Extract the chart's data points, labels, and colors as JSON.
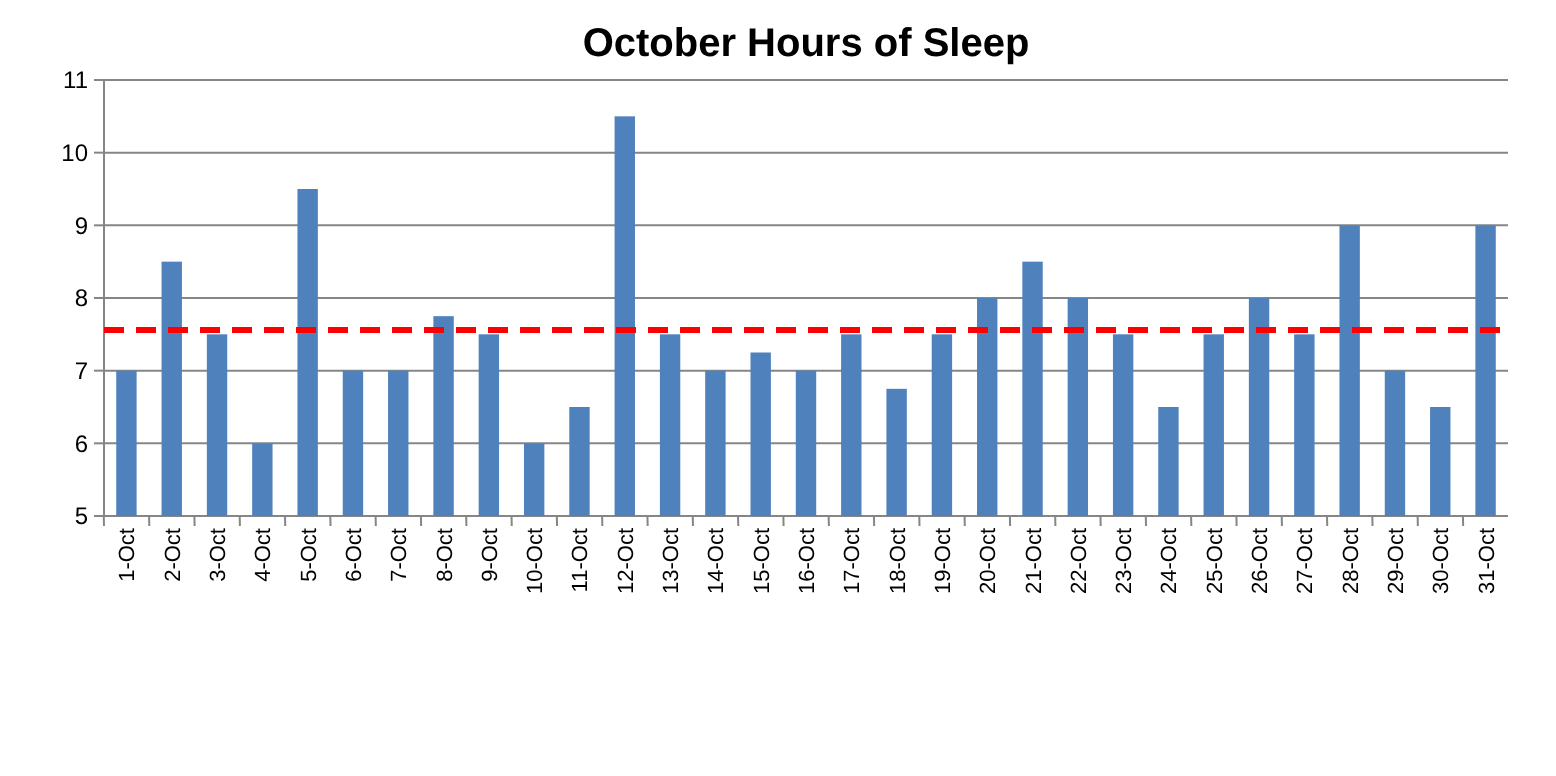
{
  "chart_data": {
    "type": "bar",
    "title": "October Hours of Sleep",
    "categories": [
      "1-Oct",
      "2-Oct",
      "3-Oct",
      "4-Oct",
      "5-Oct",
      "6-Oct",
      "7-Oct",
      "8-Oct",
      "9-Oct",
      "10-Oct",
      "11-Oct",
      "12-Oct",
      "13-Oct",
      "14-Oct",
      "15-Oct",
      "16-Oct",
      "17-Oct",
      "18-Oct",
      "19-Oct",
      "20-Oct",
      "21-Oct",
      "22-Oct",
      "23-Oct",
      "24-Oct",
      "25-Oct",
      "26-Oct",
      "27-Oct",
      "28-Oct",
      "29-Oct",
      "30-Oct",
      "31-Oct"
    ],
    "values": [
      7,
      8.5,
      7.5,
      6,
      9.5,
      7,
      7,
      7.75,
      7.5,
      6,
      6.5,
      10.5,
      7.5,
      7,
      7.25,
      7,
      7.5,
      6.75,
      7.5,
      8,
      8.5,
      8,
      7.5,
      6.5,
      7.5,
      8,
      7.5,
      9,
      7,
      6.5,
      9
    ],
    "color": "#4f81bd",
    "ylim": [
      5,
      11
    ],
    "yticks": [
      5,
      6,
      7,
      8,
      9,
      10,
      11
    ],
    "grid": "y",
    "ref_lines": [
      {
        "axis": "y",
        "value": 7.56,
        "color": "#ff0000",
        "line_style": "dashed"
      }
    ]
  }
}
